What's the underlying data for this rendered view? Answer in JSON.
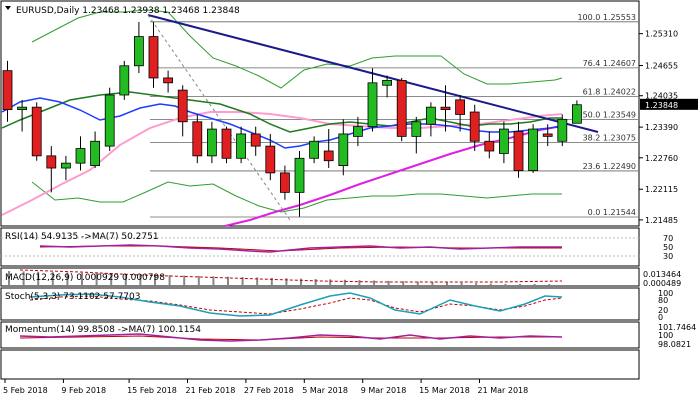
{
  "header": {
    "title": "EURUSD,Daily  1.23468 1.23938 1.23468 1.23848"
  },
  "price_axis": {
    "ticks": [
      "1.25310",
      "1.24655",
      "1.24035",
      "1.23390",
      "1.22760",
      "1.22115",
      "1.21485"
    ],
    "tick_values": [
      1.2531,
      1.24655,
      1.24035,
      1.2339,
      1.2276,
      1.22115,
      1.21485
    ],
    "current": "1.23848",
    "current_value": 1.23848
  },
  "fibonacci": [
    {
      "label": "100.0 1.25553",
      "value": 1.25553
    },
    {
      "label": "76.4 1.24607",
      "value": 1.24607
    },
    {
      "label": "61.8 1.24022",
      "value": 1.24022
    },
    {
      "label": "50.0 1.23549",
      "value": 1.23549
    },
    {
      "label": "38.2 1.23075",
      "value": 1.23075
    },
    {
      "label": "23.6 1.22490",
      "value": 1.2249
    },
    {
      "label": "0.0 1.21544",
      "value": 1.21544
    }
  ],
  "date_axis": [
    "5 Feb 2018",
    "9 Feb 2018",
    "15 Feb 2018",
    "21 Feb 2018",
    "27 Feb 2018",
    "5 Mar 2018",
    "9 Mar 2018",
    "15 Mar 2018",
    "21 Mar 2018"
  ],
  "indicators": {
    "rsi": {
      "title": "RSI(14) 54.9135  ->MA(7) 50.2751",
      "ticks": [
        "70",
        "50",
        "30"
      ]
    },
    "macd": {
      "title": "MACD(12,26,9) 0.000929 0.000798",
      "ticks": [
        "0.013464",
        "0.000489"
      ]
    },
    "stoch": {
      "title": "Stoch(5,3,3) 73.1102 57.7703",
      "ticks": [
        "100",
        "80",
        "20",
        "0"
      ]
    },
    "momentum": {
      "title": "Momentum(14) 99.8508  ->MA(7) 100.1154",
      "ticks": [
        "101.7464",
        "100",
        "98.0821"
      ]
    }
  },
  "colors": {
    "bull": "#22bb22",
    "bear": "#e02020",
    "trendline": "#1a1a8c",
    "sma_blue": "#1e3cff",
    "sma_green": "#1e7a1e",
    "sma_magenta": "#e020e0",
    "sma_pink": "#ff9ccf",
    "band": "#2e9e2e",
    "indicator_red": "#c00000",
    "indicator_purple": "#a020a0"
  },
  "chart_data": {
    "type": "candlestick",
    "symbol": "EURUSD",
    "timeframe": "Daily",
    "ylim": [
      1.2138,
      1.2596
    ],
    "candles": [
      [
        1.2455,
        1.2475,
        1.235,
        1.2375
      ],
      [
        1.2375,
        1.2395,
        1.233,
        1.238
      ],
      [
        1.238,
        1.239,
        1.227,
        1.228
      ],
      [
        1.228,
        1.23,
        1.2205,
        1.2255
      ],
      [
        1.2255,
        1.228,
        1.223,
        1.2265
      ],
      [
        1.2265,
        1.232,
        1.225,
        1.2295
      ],
      [
        1.226,
        1.233,
        1.2255,
        1.231
      ],
      [
        1.23,
        1.242,
        1.229,
        1.2405
      ],
      [
        1.2405,
        1.2475,
        1.2395,
        1.2465
      ],
      [
        1.2465,
        1.2555,
        1.245,
        1.2525
      ],
      [
        1.2525,
        1.2555,
        1.242,
        1.244
      ],
      [
        1.244,
        1.2455,
        1.241,
        1.243
      ],
      [
        1.2415,
        1.2425,
        1.232,
        1.235
      ],
      [
        1.235,
        1.2365,
        1.2265,
        1.228
      ],
      [
        1.228,
        1.235,
        1.2265,
        1.2335
      ],
      [
        1.2335,
        1.234,
        1.2265,
        1.2275
      ],
      [
        1.2275,
        1.234,
        1.2265,
        1.2325
      ],
      [
        1.2325,
        1.234,
        1.228,
        1.23
      ],
      [
        1.23,
        1.2325,
        1.223,
        1.2245
      ],
      [
        1.2245,
        1.226,
        1.219,
        1.2205
      ],
      [
        1.2205,
        1.229,
        1.2155,
        1.2275
      ],
      [
        1.2275,
        1.232,
        1.2265,
        1.231
      ],
      [
        1.229,
        1.2335,
        1.2255,
        1.227
      ],
      [
        1.226,
        1.2355,
        1.224,
        1.2325
      ],
      [
        1.232,
        1.236,
        1.23,
        1.234
      ],
      [
        1.234,
        1.246,
        1.233,
        1.243
      ],
      [
        1.2425,
        1.2445,
        1.24,
        1.2435
      ],
      [
        1.2435,
        1.244,
        1.231,
        1.232
      ],
      [
        1.232,
        1.236,
        1.2285,
        1.235
      ],
      [
        1.2345,
        1.239,
        1.232,
        1.238
      ],
      [
        1.238,
        1.2425,
        1.233,
        1.2375
      ],
      [
        1.2395,
        1.2405,
        1.233,
        1.2365
      ],
      [
        1.237,
        1.2385,
        1.229,
        1.231
      ],
      [
        1.231,
        1.233,
        1.2275,
        1.229
      ],
      [
        1.2285,
        1.235,
        1.2265,
        1.2335
      ],
      [
        1.233,
        1.235,
        1.2235,
        1.225
      ],
      [
        1.225,
        1.2345,
        1.2245,
        1.2335
      ],
      [
        1.2325,
        1.2345,
        1.23,
        1.232
      ],
      [
        1.231,
        1.2365,
        1.23,
        1.2355
      ],
      [
        1.2347,
        1.2394,
        1.2347,
        1.2385
      ]
    ]
  }
}
